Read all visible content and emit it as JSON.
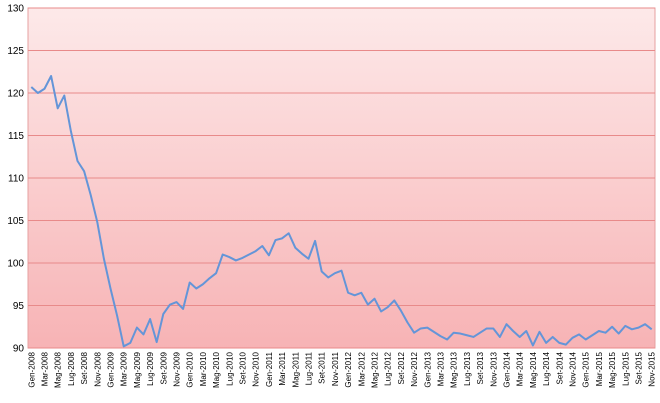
{
  "chart_data": {
    "type": "line",
    "categories": [
      "Gen-2008",
      null,
      "Mar-2008",
      null,
      "Mag-2008",
      null,
      "Lug-2008",
      null,
      "Set-2008",
      null,
      "Nov-2008",
      null,
      "Gen-2009",
      null,
      "Mar-2009",
      null,
      "Mag-2009",
      null,
      "Lug-2009",
      null,
      "Set-2009",
      null,
      "Nov-2009",
      null,
      "Gen-2010",
      null,
      "Mar-2010",
      null,
      "Mag-2010",
      null,
      "Lug-2010",
      null,
      "Set-2010",
      null,
      "Nov-2010",
      null,
      "Gen-2011",
      null,
      "Mar-2011",
      null,
      "Mag-2011",
      null,
      "Lug-2011",
      null,
      "Set-2011",
      null,
      "Nov-2011",
      null,
      "Gen-2012",
      null,
      "Mar-2012",
      null,
      "Mag-2012",
      null,
      "Lug-2012",
      null,
      "Set-2012",
      null,
      "Nov-2012",
      null,
      "Gen-2013",
      null,
      "Mar-2013",
      null,
      "Mag-2013",
      null,
      "Lug-2013",
      null,
      "Set-2013",
      null,
      "Nov-2013",
      null,
      "Gen-2014",
      null,
      "Mar-2014",
      null,
      "Mag-2014",
      null,
      "Lug-2014",
      null,
      "Set-2014",
      null,
      "Nov-2014",
      null,
      "Gen-2015",
      null,
      "Mar-2015",
      null,
      "Mag-2015",
      null,
      "Lug-2015",
      null,
      "Set-2015",
      null,
      "Nov-2015"
    ],
    "values": [
      120.7,
      120.0,
      120.5,
      122.0,
      118.2,
      119.7,
      115.5,
      112.0,
      110.8,
      108.0,
      104.8,
      100.5,
      97.0,
      93.8,
      90.2,
      90.6,
      92.4,
      91.6,
      93.4,
      90.7,
      94.0,
      95.1,
      95.4,
      94.6,
      97.7,
      97.0,
      97.5,
      98.2,
      98.8,
      101.0,
      100.7,
      100.3,
      100.6,
      101.0,
      101.4,
      102.0,
      100.9,
      102.7,
      102.9,
      103.5,
      101.8,
      101.1,
      100.5,
      102.6,
      99.0,
      98.3,
      98.8,
      99.1,
      96.5,
      96.2,
      96.5,
      95.1,
      95.8,
      94.3,
      94.8,
      95.6,
      94.4,
      93.0,
      91.8,
      92.3,
      92.4,
      91.9,
      91.4,
      91.0,
      91.8,
      91.7,
      91.5,
      91.3,
      91.8,
      92.3,
      92.3,
      91.3,
      92.8,
      92.0,
      91.3,
      92.0,
      90.3,
      91.9,
      90.6,
      91.3,
      90.6,
      90.4,
      91.2,
      91.6,
      91.0,
      91.5,
      92.0,
      91.8,
      92.5,
      91.7,
      92.6,
      92.2,
      92.4,
      92.8,
      92.2
    ],
    "color": "#6495d8",
    "ylim": [
      90,
      130
    ],
    "yticks": [
      90,
      95,
      100,
      105,
      110,
      115,
      120,
      125,
      130
    ],
    "grid": true
  }
}
